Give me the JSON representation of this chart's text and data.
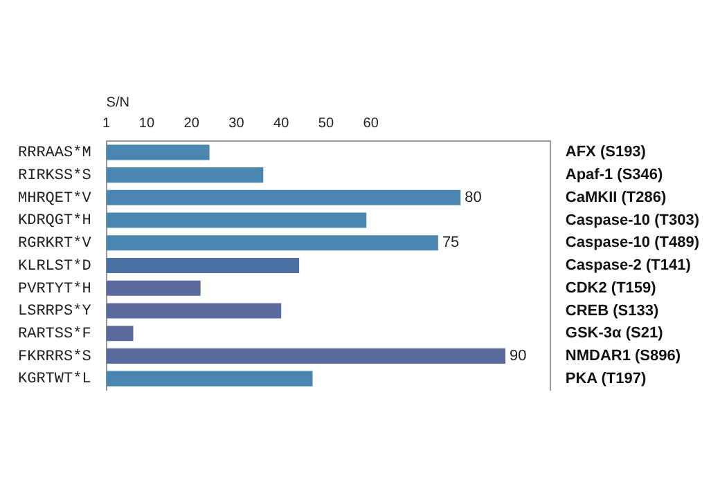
{
  "chart_data": {
    "type": "bar",
    "orientation": "horizontal",
    "xlabel": "S/N",
    "categories": [
      "RRRAAS*M",
      "RIRKSS*S",
      "MHRQET*V",
      "KDRQGT*H",
      "RGRKRT*V",
      "KLRLST*D",
      "PVRTYT*H",
      "LSRRPS*Y",
      "RARTSS*F",
      "FKRRRS*S",
      "KGRTWT*L"
    ],
    "y2_categories": [
      "AFX (S193)",
      "Apaf-1 (S346)",
      "CaMKII (T286)",
      "Caspase-10 (T303)",
      "Caspase-10 (T489)",
      "Caspase-2 (T141)",
      "CDK2 (T159)",
      "CREB (S133)",
      "GSK-3α (S21)",
      "NMDAR1 (S896)",
      "PKA (T197)"
    ],
    "values": [
      24,
      36,
      80,
      59,
      75,
      44,
      22,
      40,
      7,
      90,
      47
    ],
    "value_labels": [
      null,
      null,
      "80",
      null,
      "75",
      null,
      null,
      null,
      null,
      "90",
      null
    ],
    "colors": [
      "#4a86b0",
      "#4a86b0",
      "#4a86b0",
      "#4a86b0",
      "#4a86b0",
      "#4a6fa0",
      "#5a6a9c",
      "#5a6a9c",
      "#5a6a9c",
      "#5a6a9c",
      "#4a86b0"
    ],
    "xlim": [
      1,
      100
    ],
    "xticks": [
      1,
      10,
      20,
      30,
      40,
      50,
      60
    ],
    "grid": false,
    "legend": false
  }
}
